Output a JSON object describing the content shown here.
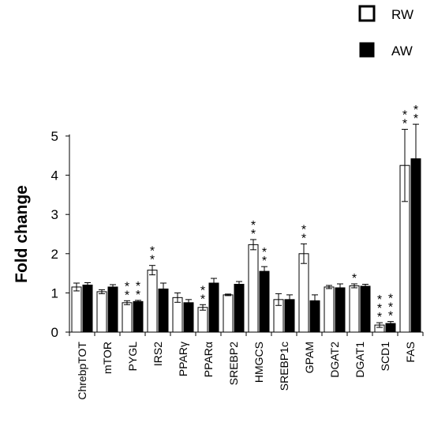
{
  "chart_data": {
    "type": "bar",
    "categories": [
      "ChrebpTOT",
      "mTOR",
      "PYGL",
      "IRS2",
      "PPARγ",
      "PPARα",
      "SREBP2",
      "HMGCS",
      "SREBP1c",
      "GPAM",
      "DGAT2",
      "DGAT1",
      "SCD1",
      "FAS"
    ],
    "series": [
      {
        "name": "RW",
        "color": "#ffffff",
        "values": [
          1.15,
          1.03,
          0.75,
          1.58,
          0.88,
          0.63,
          0.95,
          2.23,
          0.83,
          2.0,
          1.15,
          1.18,
          0.18,
          4.25
        ],
        "errors": [
          0.1,
          0.05,
          0.05,
          0.12,
          0.12,
          0.07,
          0.02,
          0.13,
          0.15,
          0.25,
          0.04,
          0.05,
          0.06,
          0.92
        ],
        "significance": [
          "",
          "",
          "**",
          "**",
          "",
          "**",
          "",
          "**",
          "",
          "**",
          "",
          "*",
          "***",
          "**"
        ]
      },
      {
        "name": "AW",
        "color": "#000000",
        "values": [
          1.2,
          1.15,
          0.78,
          1.1,
          0.75,
          1.25,
          1.22,
          1.55,
          0.83,
          0.8,
          1.13,
          1.17,
          0.22,
          4.42
        ],
        "errors": [
          0.06,
          0.06,
          0.03,
          0.15,
          0.08,
          0.12,
          0.07,
          0.12,
          0.12,
          0.15,
          0.1,
          0.05,
          0.05,
          0.88
        ],
        "significance": [
          "",
          "",
          "**",
          "",
          "",
          "",
          "",
          "**",
          "",
          "",
          "",
          "",
          "***",
          "**"
        ]
      }
    ],
    "title": "",
    "xlabel": "",
    "ylabel": "Fold change",
    "ylim": [
      0,
      5
    ],
    "yticks": [
      0,
      1,
      2,
      3,
      4,
      5
    ],
    "grid": false,
    "legend_position": "top-right"
  }
}
